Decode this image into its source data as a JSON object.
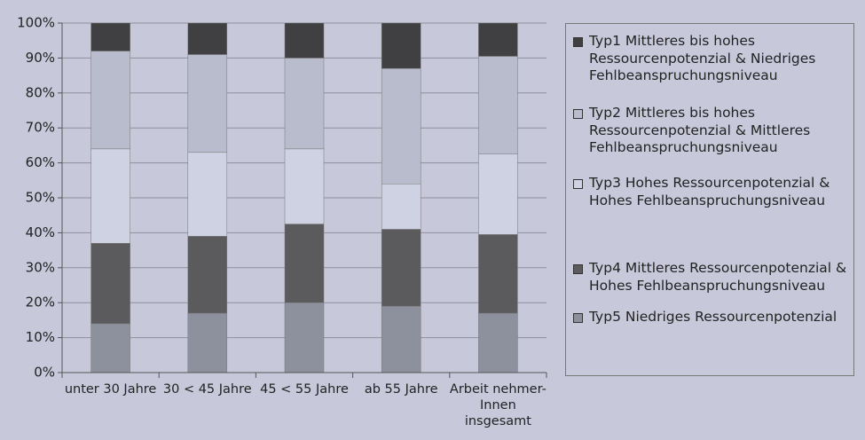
{
  "chart_data": {
    "type": "stacked_bar",
    "categories": [
      "unter 30 Jahre",
      "30 < 45 Jahre",
      "45 < 55 Jahre",
      "ab 55 Jahre",
      "Arbeit nehmer-Innen insgesamt"
    ],
    "series": [
      {
        "name": "Typ5 Niedriges Ressourcenpotenzial",
        "color": "#8d909d",
        "values": [
          14,
          17,
          20,
          19,
          17
        ]
      },
      {
        "name": "Typ4 Mittleres Ressourcenpotenzial & Hohes Fehlbeanspruchungsniveau",
        "color": "#5b5b5e",
        "values": [
          23,
          22,
          22.5,
          22,
          22.5
        ]
      },
      {
        "name": "Typ3 Hohes Ressourcenpotenzial & Hohes Fehlbeanspruchungsniveau",
        "color": "#cfd2e2",
        "values": [
          27,
          24,
          21.5,
          13,
          23
        ]
      },
      {
        "name": "Typ2 Mittleres bis hohes Ressourcenpotenzial & Mittleres Fehlbeanspruchungsniveau",
        "color": "#b9bccd",
        "values": [
          28,
          28,
          26,
          33,
          28
        ]
      },
      {
        "name": "Typ1 Mittleres bis hohes Ressourcenpotenzial & Niedriges Fehlbeanspruchungsniveau",
        "color": "#404042",
        "values": [
          8,
          9,
          10,
          13,
          9.5
        ]
      }
    ],
    "ylim": [
      0,
      100
    ],
    "yticks": [
      {
        "value": 0,
        "label": "0%"
      },
      {
        "value": 10,
        "label": "10%"
      },
      {
        "value": 20,
        "label": "20%"
      },
      {
        "value": 30,
        "label": "30%"
      },
      {
        "value": 40,
        "label": "40%"
      },
      {
        "value": 50,
        "label": "50%"
      },
      {
        "value": 60,
        "label": "60%"
      },
      {
        "value": 70,
        "label": "70%"
      },
      {
        "value": 80,
        "label": "80%"
      },
      {
        "value": 90,
        "label": "90%"
      },
      {
        "value": 100,
        "label": "100%"
      }
    ],
    "grid": true
  }
}
